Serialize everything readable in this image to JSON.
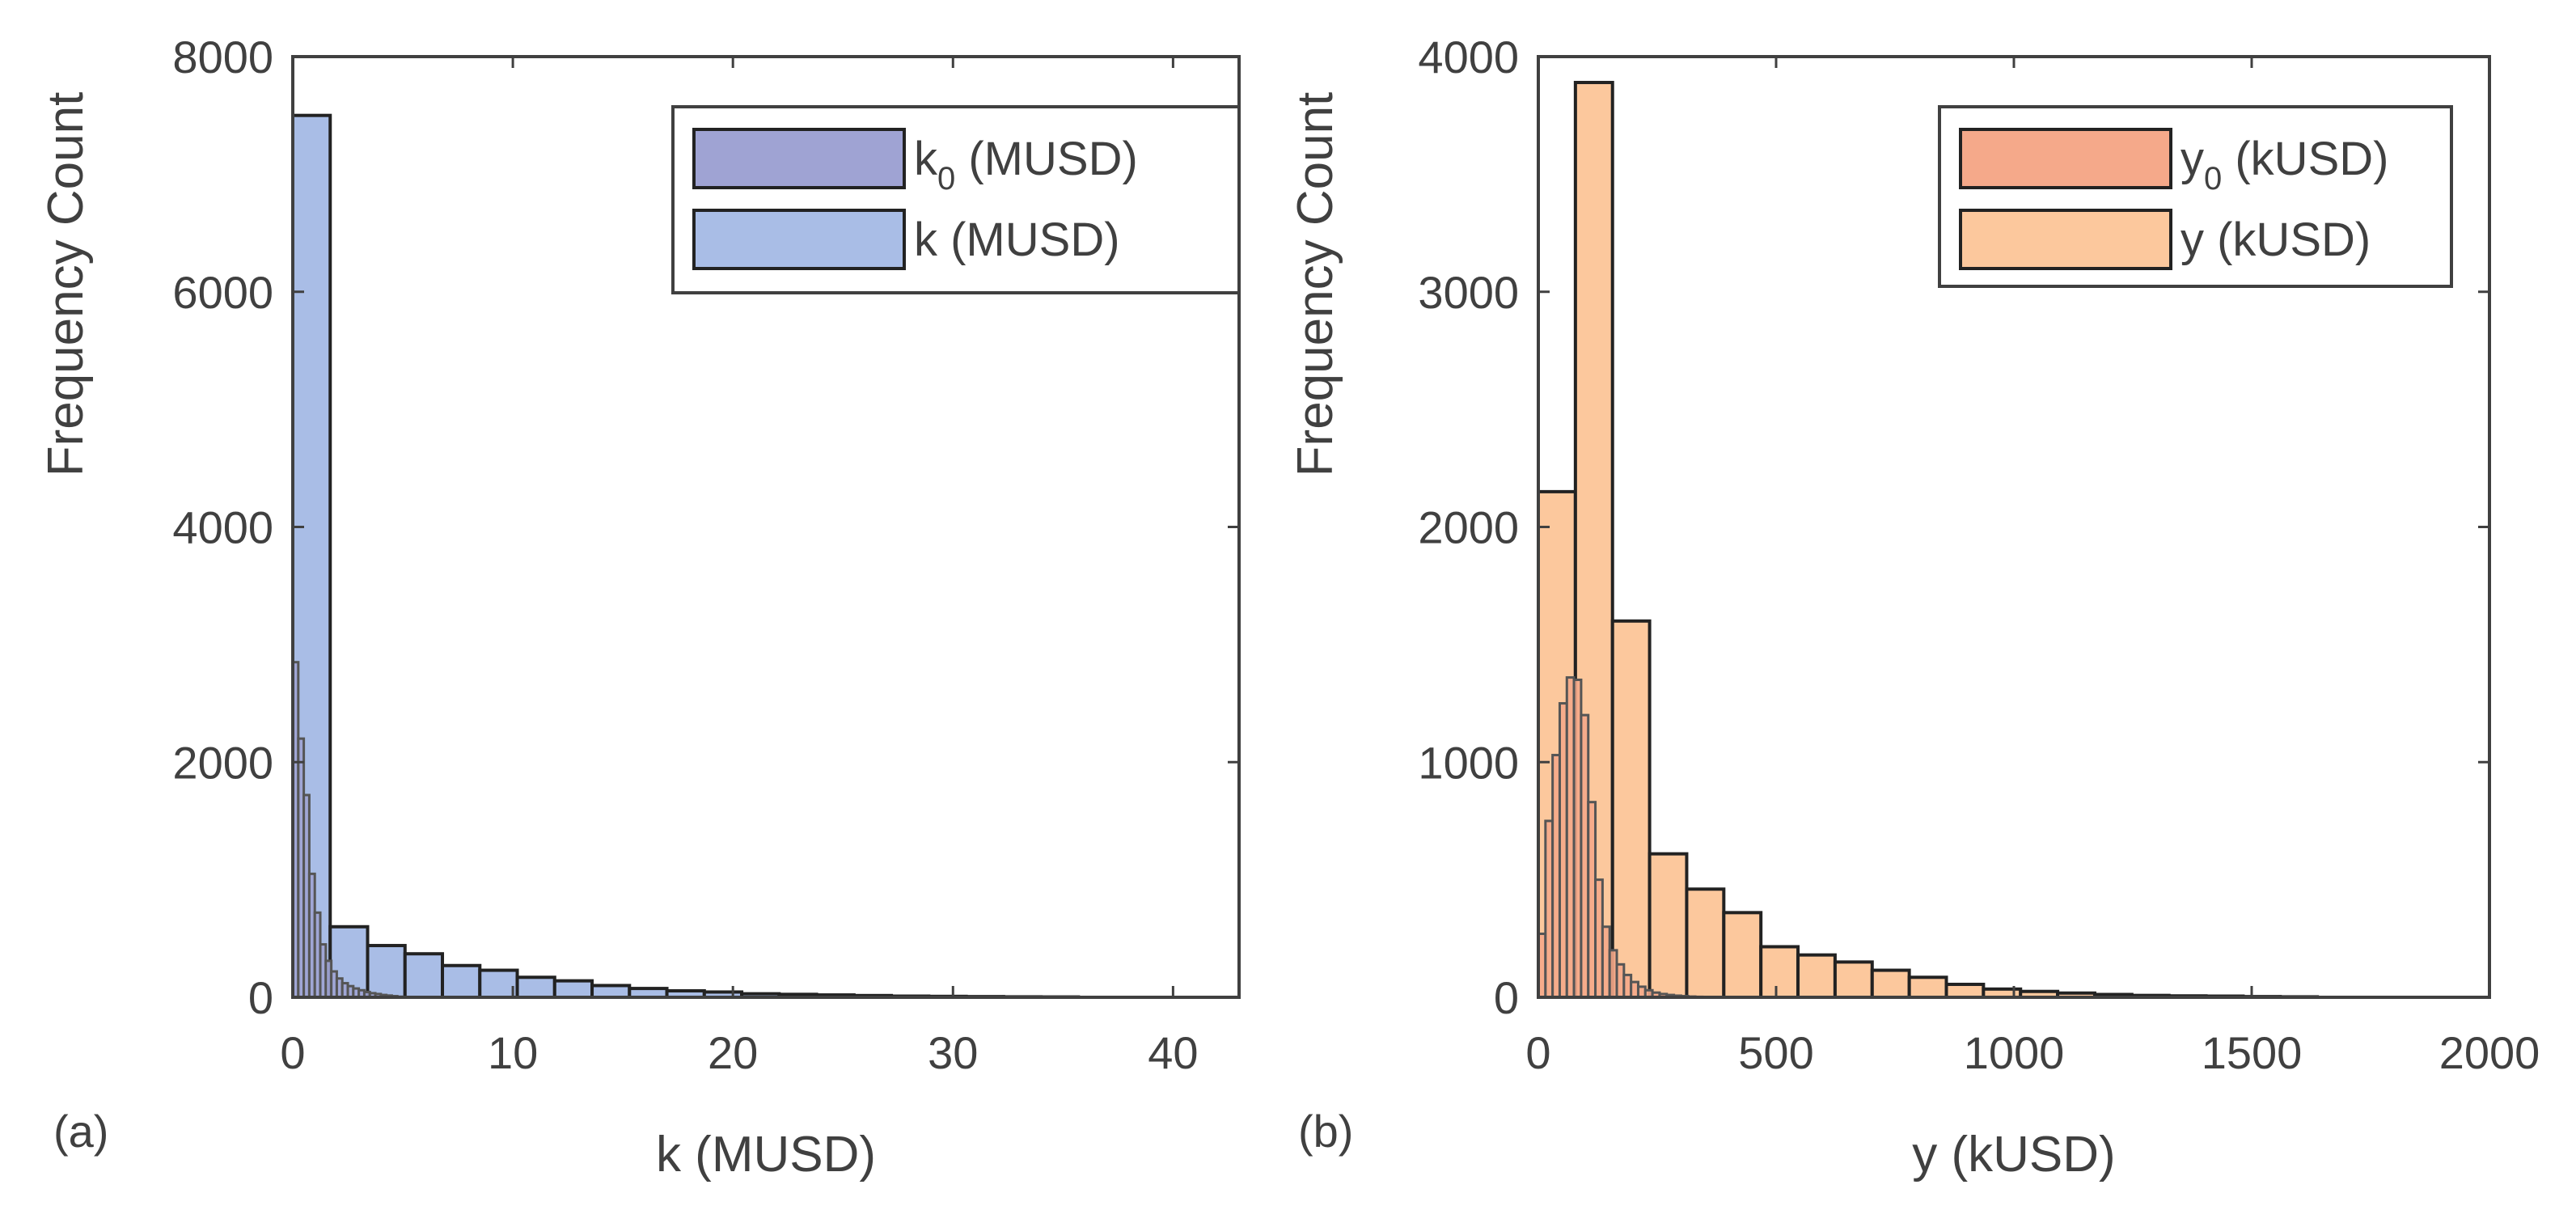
{
  "chart_data": [
    {
      "type": "histogram",
      "panel_label": "(a)",
      "xlabel": "k (MUSD)",
      "ylabel": "Frequency Count",
      "xlim": [
        0,
        43
      ],
      "ylim": [
        0,
        8000
      ],
      "xticks": [
        "0",
        "10",
        "20",
        "30",
        "40"
      ],
      "yticks": [
        "0",
        "2000",
        "4000",
        "6000",
        "8000"
      ],
      "legend_position": "top-right",
      "series": [
        {
          "name": "k0 (MUSD)",
          "legend_main": "k",
          "legend_sub": "0",
          "legend_rest": " (MUSD)",
          "color": "#9fa3d3",
          "bin_edges": [
            0,
            0.25,
            0.5,
            0.75,
            1.0,
            1.25,
            1.5,
            1.75,
            2.0,
            2.25,
            2.5,
            2.75,
            3.0,
            3.25,
            3.5,
            3.75,
            4.0,
            4.25,
            4.5,
            4.75,
            5.0
          ],
          "counts": [
            2850,
            2200,
            1720,
            1050,
            720,
            450,
            310,
            220,
            160,
            120,
            95,
            75,
            60,
            45,
            35,
            28,
            20,
            15,
            10,
            5
          ]
        },
        {
          "name": "k (MUSD)",
          "legend_main": "k",
          "legend_sub": "",
          "legend_rest": " (MUSD)",
          "color": "#a9bde6",
          "bin_edges": [
            0,
            1.7,
            3.4,
            5.1,
            6.8,
            8.5,
            10.2,
            11.9,
            13.6,
            15.3,
            17.0,
            18.7,
            20.4,
            22.1,
            23.8,
            25.5,
            27.2,
            28.9,
            30.6,
            32.3,
            34.0,
            35.7
          ],
          "counts": [
            7500,
            600,
            440,
            370,
            270,
            230,
            170,
            140,
            100,
            75,
            55,
            45,
            30,
            25,
            20,
            15,
            10,
            8,
            6,
            4,
            3
          ]
        }
      ]
    },
    {
      "type": "histogram",
      "panel_label": "(b)",
      "xlabel": "y (kUSD)",
      "ylabel": "Frequency Count",
      "xlim": [
        0,
        2000
      ],
      "ylim": [
        0,
        4000
      ],
      "xticks": [
        "0",
        "500",
        "1000",
        "1500",
        "2000"
      ],
      "yticks": [
        "0",
        "1000",
        "2000",
        "3000",
        "4000"
      ],
      "legend_position": "top-right",
      "series": [
        {
          "name": "y0 (kUSD)",
          "legend_main": "y",
          "legend_sub": "0",
          "legend_rest": " (kUSD)",
          "color": "#f5a98a",
          "bin_edges": [
            0,
            15,
            30,
            45,
            60,
            75,
            90,
            105,
            120,
            135,
            150,
            165,
            180,
            195,
            210,
            225,
            240,
            255,
            270,
            285,
            300,
            315,
            330,
            345,
            360
          ],
          "counts": [
            270,
            750,
            1030,
            1250,
            1360,
            1350,
            1200,
            830,
            500,
            300,
            200,
            140,
            95,
            65,
            45,
            30,
            20,
            14,
            10,
            7,
            5,
            3,
            2,
            1
          ]
        },
        {
          "name": "y (kUSD)",
          "legend_main": "y",
          "legend_sub": "",
          "legend_rest": " (kUSD)",
          "color": "#fcc89d",
          "bin_edges": [
            0,
            78,
            156,
            234,
            312,
            390,
            468,
            546,
            624,
            702,
            780,
            858,
            936,
            1014,
            1092,
            1170,
            1248,
            1326,
            1404,
            1482,
            1560,
            1638
          ],
          "counts": [
            2150,
            3890,
            1600,
            610,
            460,
            360,
            215,
            180,
            150,
            115,
            85,
            55,
            35,
            25,
            18,
            12,
            8,
            6,
            5,
            3,
            2
          ]
        }
      ]
    }
  ]
}
